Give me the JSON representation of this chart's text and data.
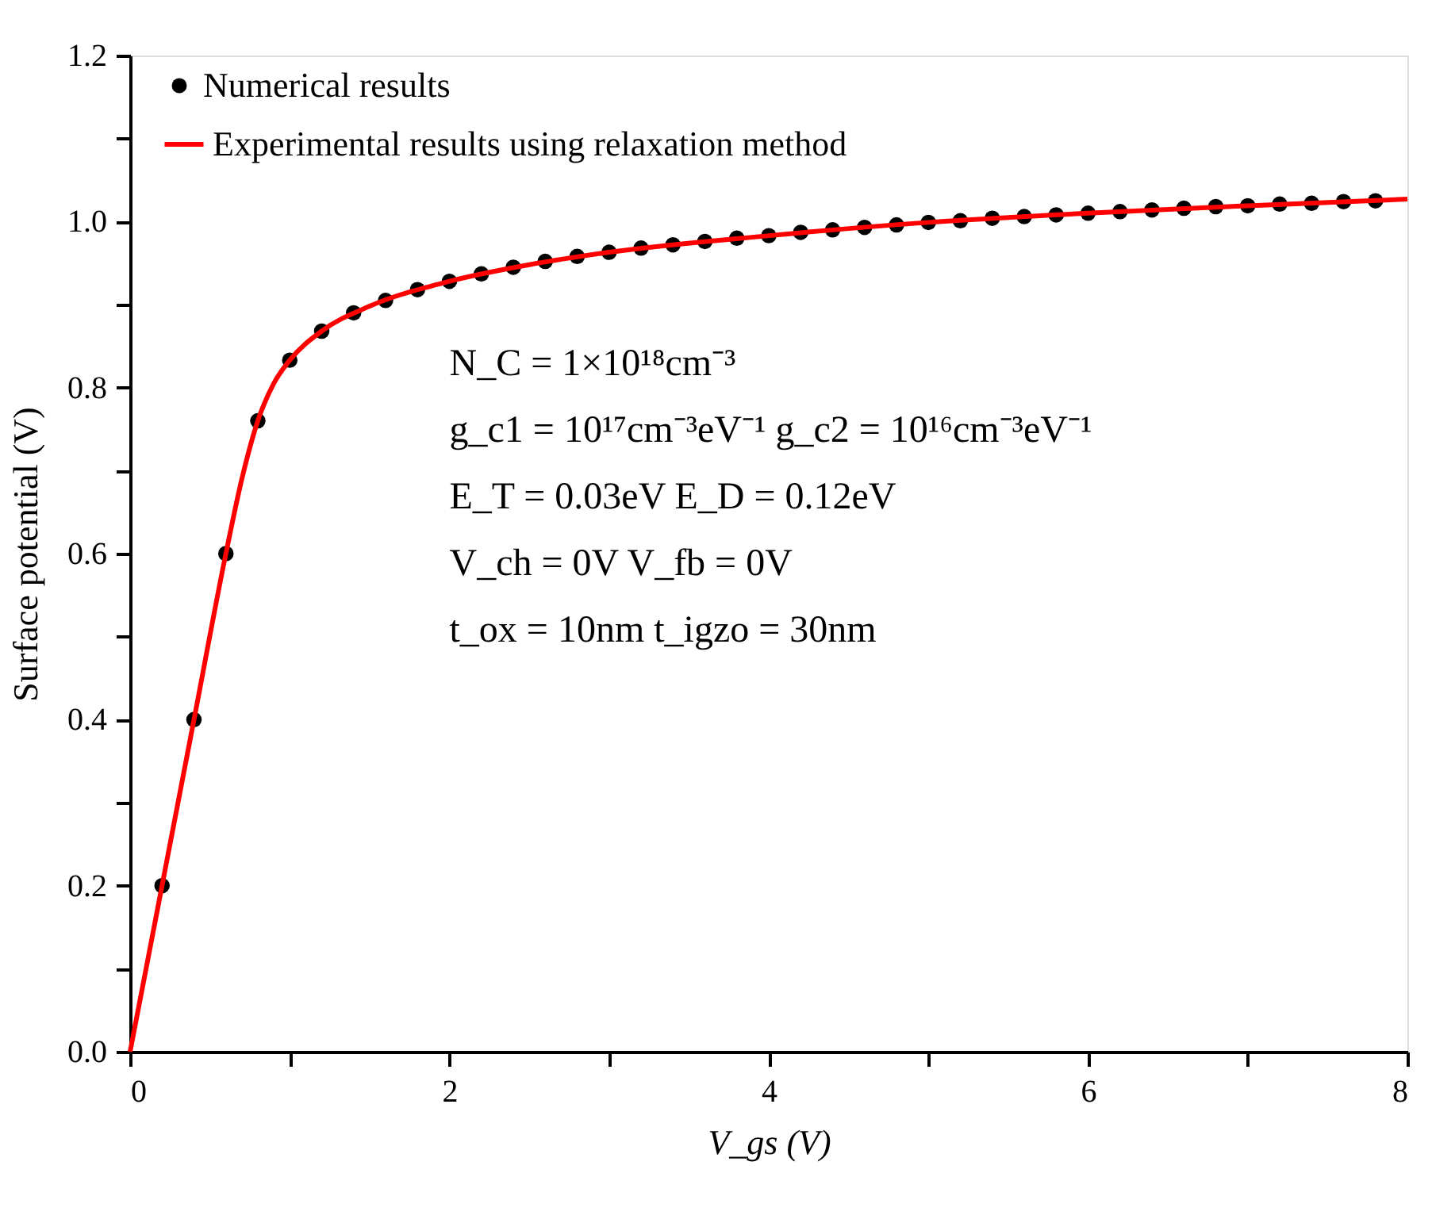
{
  "chart_data": {
    "type": "scatter",
    "xlabel": "V_gs (V)",
    "ylabel": "Surface potential (V)",
    "xlim": [
      0,
      8
    ],
    "ylim": [
      0,
      1.2
    ],
    "xticks": [
      0,
      {
        "value": 1,
        "label": null
      },
      2,
      {
        "value": 3,
        "label": null
      },
      4,
      {
        "value": 5,
        "label": null
      },
      6,
      {
        "value": 7,
        "label": null
      },
      8
    ],
    "yticks": [
      {
        "value": 0,
        "label": "0.0"
      },
      {
        "value": 0.1,
        "label": null
      },
      0.2,
      {
        "value": 0.3,
        "label": null
      },
      0.4,
      {
        "value": 0.5,
        "label": null
      },
      0.6,
      {
        "value": 0.7,
        "label": null
      },
      0.8,
      {
        "value": 0.9,
        "label": null
      },
      {
        "value": 1.0,
        "label": "1.0"
      },
      {
        "value": 1.1,
        "label": null
      },
      1.2
    ],
    "grid": false,
    "legend": "top left",
    "series": [
      {
        "name": "Numerical results",
        "type": "scatter",
        "marker": "circle",
        "color": "#000000",
        "x": [
          0.2,
          0.4,
          0.6,
          0.8,
          1.0,
          1.2,
          1.4,
          1.6,
          1.8,
          2.0,
          2.2,
          2.4,
          2.6,
          2.8,
          3.0,
          3.2,
          3.4,
          3.6,
          3.8,
          4.0,
          4.2,
          4.4,
          4.6,
          4.8,
          5.0,
          5.2,
          5.4,
          5.6,
          5.8,
          6.0,
          6.2,
          6.4,
          6.6,
          6.8,
          7.0,
          7.2,
          7.4,
          7.6,
          7.8
        ],
        "values": [
          0.2,
          0.4,
          0.6,
          0.76,
          0.833,
          0.868,
          0.89,
          0.905,
          0.918,
          0.928,
          0.937,
          0.945,
          0.952,
          0.958,
          0.963,
          0.968,
          0.972,
          0.976,
          0.98,
          0.983,
          0.987,
          0.99,
          0.993,
          0.996,
          0.999,
          1.001,
          1.004,
          1.006,
          1.008,
          1.01,
          1.012,
          1.014,
          1.016,
          1.018,
          1.019,
          1.021,
          1.022,
          1.024,
          1.025
        ]
      },
      {
        "name": "Experimental results using relaxation method",
        "type": "line",
        "line_style": "solid",
        "color": "#ff0000",
        "x": [
          0,
          0.2,
          0.4,
          0.6,
          0.7,
          0.8,
          0.9,
          1.0,
          1.2,
          1.5,
          2.0,
          2.5,
          3.0,
          4.0,
          5.0,
          6.0,
          7.0,
          8.0
        ],
        "values": [
          0,
          0.2,
          0.4,
          0.6,
          0.69,
          0.76,
          0.805,
          0.833,
          0.868,
          0.898,
          0.928,
          0.948,
          0.963,
          0.983,
          0.999,
          1.01,
          1.019,
          1.027
        ]
      }
    ],
    "annotations": [
      "N_C = 1×10¹⁸cm⁻³",
      "g_c1 = 10¹⁷cm⁻³eV⁻¹    g_c2 = 10¹⁶cm⁻³eV⁻¹",
      "E_T = 0.03eV   E_D = 0.12eV",
      "V_ch = 0V        V_fb = 0V",
      "t_ox = 10nm    t_igzo = 30nm"
    ]
  }
}
